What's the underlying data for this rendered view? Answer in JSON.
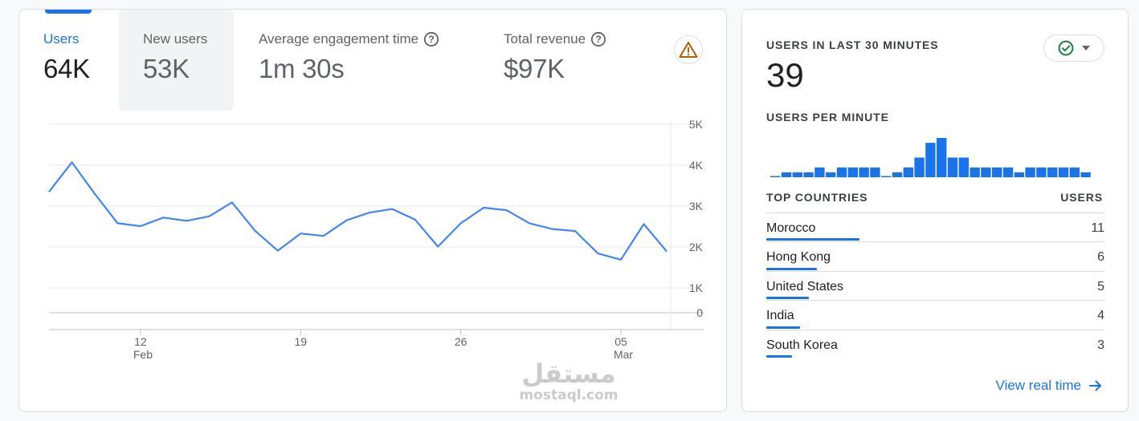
{
  "metrics": {
    "users": {
      "label": "Users",
      "value": "64K"
    },
    "new_users": {
      "label": "New users",
      "value": "53K"
    },
    "engagement": {
      "label": "Average engagement time",
      "value": "1m 30s"
    },
    "revenue": {
      "label": "Total revenue",
      "value": "$97K"
    }
  },
  "chart_data": {
    "type": "line",
    "title": "Users",
    "y_tick_labels": [
      "5K",
      "4K",
      "3K",
      "2K",
      "1K",
      "0"
    ],
    "y_ticks": [
      5000,
      4000,
      3000,
      2000,
      1000,
      0
    ],
    "ylim": [
      0,
      5000
    ],
    "x_tick_labels": [
      {
        "day": "12",
        "month": "Feb",
        "index": 4
      },
      {
        "day": "19",
        "month": "",
        "index": 11
      },
      {
        "day": "26",
        "month": "",
        "index": 18
      },
      {
        "day": "05",
        "month": "Mar",
        "index": 25
      }
    ],
    "series": [
      {
        "name": "Users",
        "color": "#4285f4",
        "values": [
          3350,
          4070,
          3300,
          2580,
          2510,
          2720,
          2640,
          2750,
          3090,
          2400,
          1910,
          2330,
          2270,
          2650,
          2840,
          2930,
          2670,
          2010,
          2580,
          2960,
          2900,
          2580,
          2440,
          2390,
          1840,
          1690,
          2560,
          1890
        ]
      }
    ]
  },
  "realtime": {
    "heading": "USERS IN LAST 30 MINUTES",
    "value": "39",
    "per_minute_heading": "USERS PER MINUTE",
    "per_minute_values": [
      0,
      1,
      1,
      1,
      2,
      1,
      2,
      2,
      2,
      2,
      0,
      1,
      2,
      4,
      7,
      8,
      4,
      4,
      2,
      2,
      2,
      2,
      1,
      2,
      2,
      2,
      2,
      2,
      1
    ],
    "bar_color": "#1a73e8",
    "status_icon": "check-circle-icon",
    "top_countries_heading": "TOP COUNTRIES",
    "users_heading": "USERS",
    "countries": [
      {
        "name": "Morocco",
        "users": "11",
        "share": 1.0
      },
      {
        "name": "Hong Kong",
        "users": "6",
        "share": 0.545
      },
      {
        "name": "United States",
        "users": "5",
        "share": 0.455
      },
      {
        "name": "India",
        "users": "4",
        "share": 0.364
      },
      {
        "name": "South Korea",
        "users": "3",
        "share": 0.273
      }
    ],
    "view_link": "View real time"
  },
  "watermark": {
    "arabic": "مستقل",
    "latin": "mostaql.com"
  }
}
